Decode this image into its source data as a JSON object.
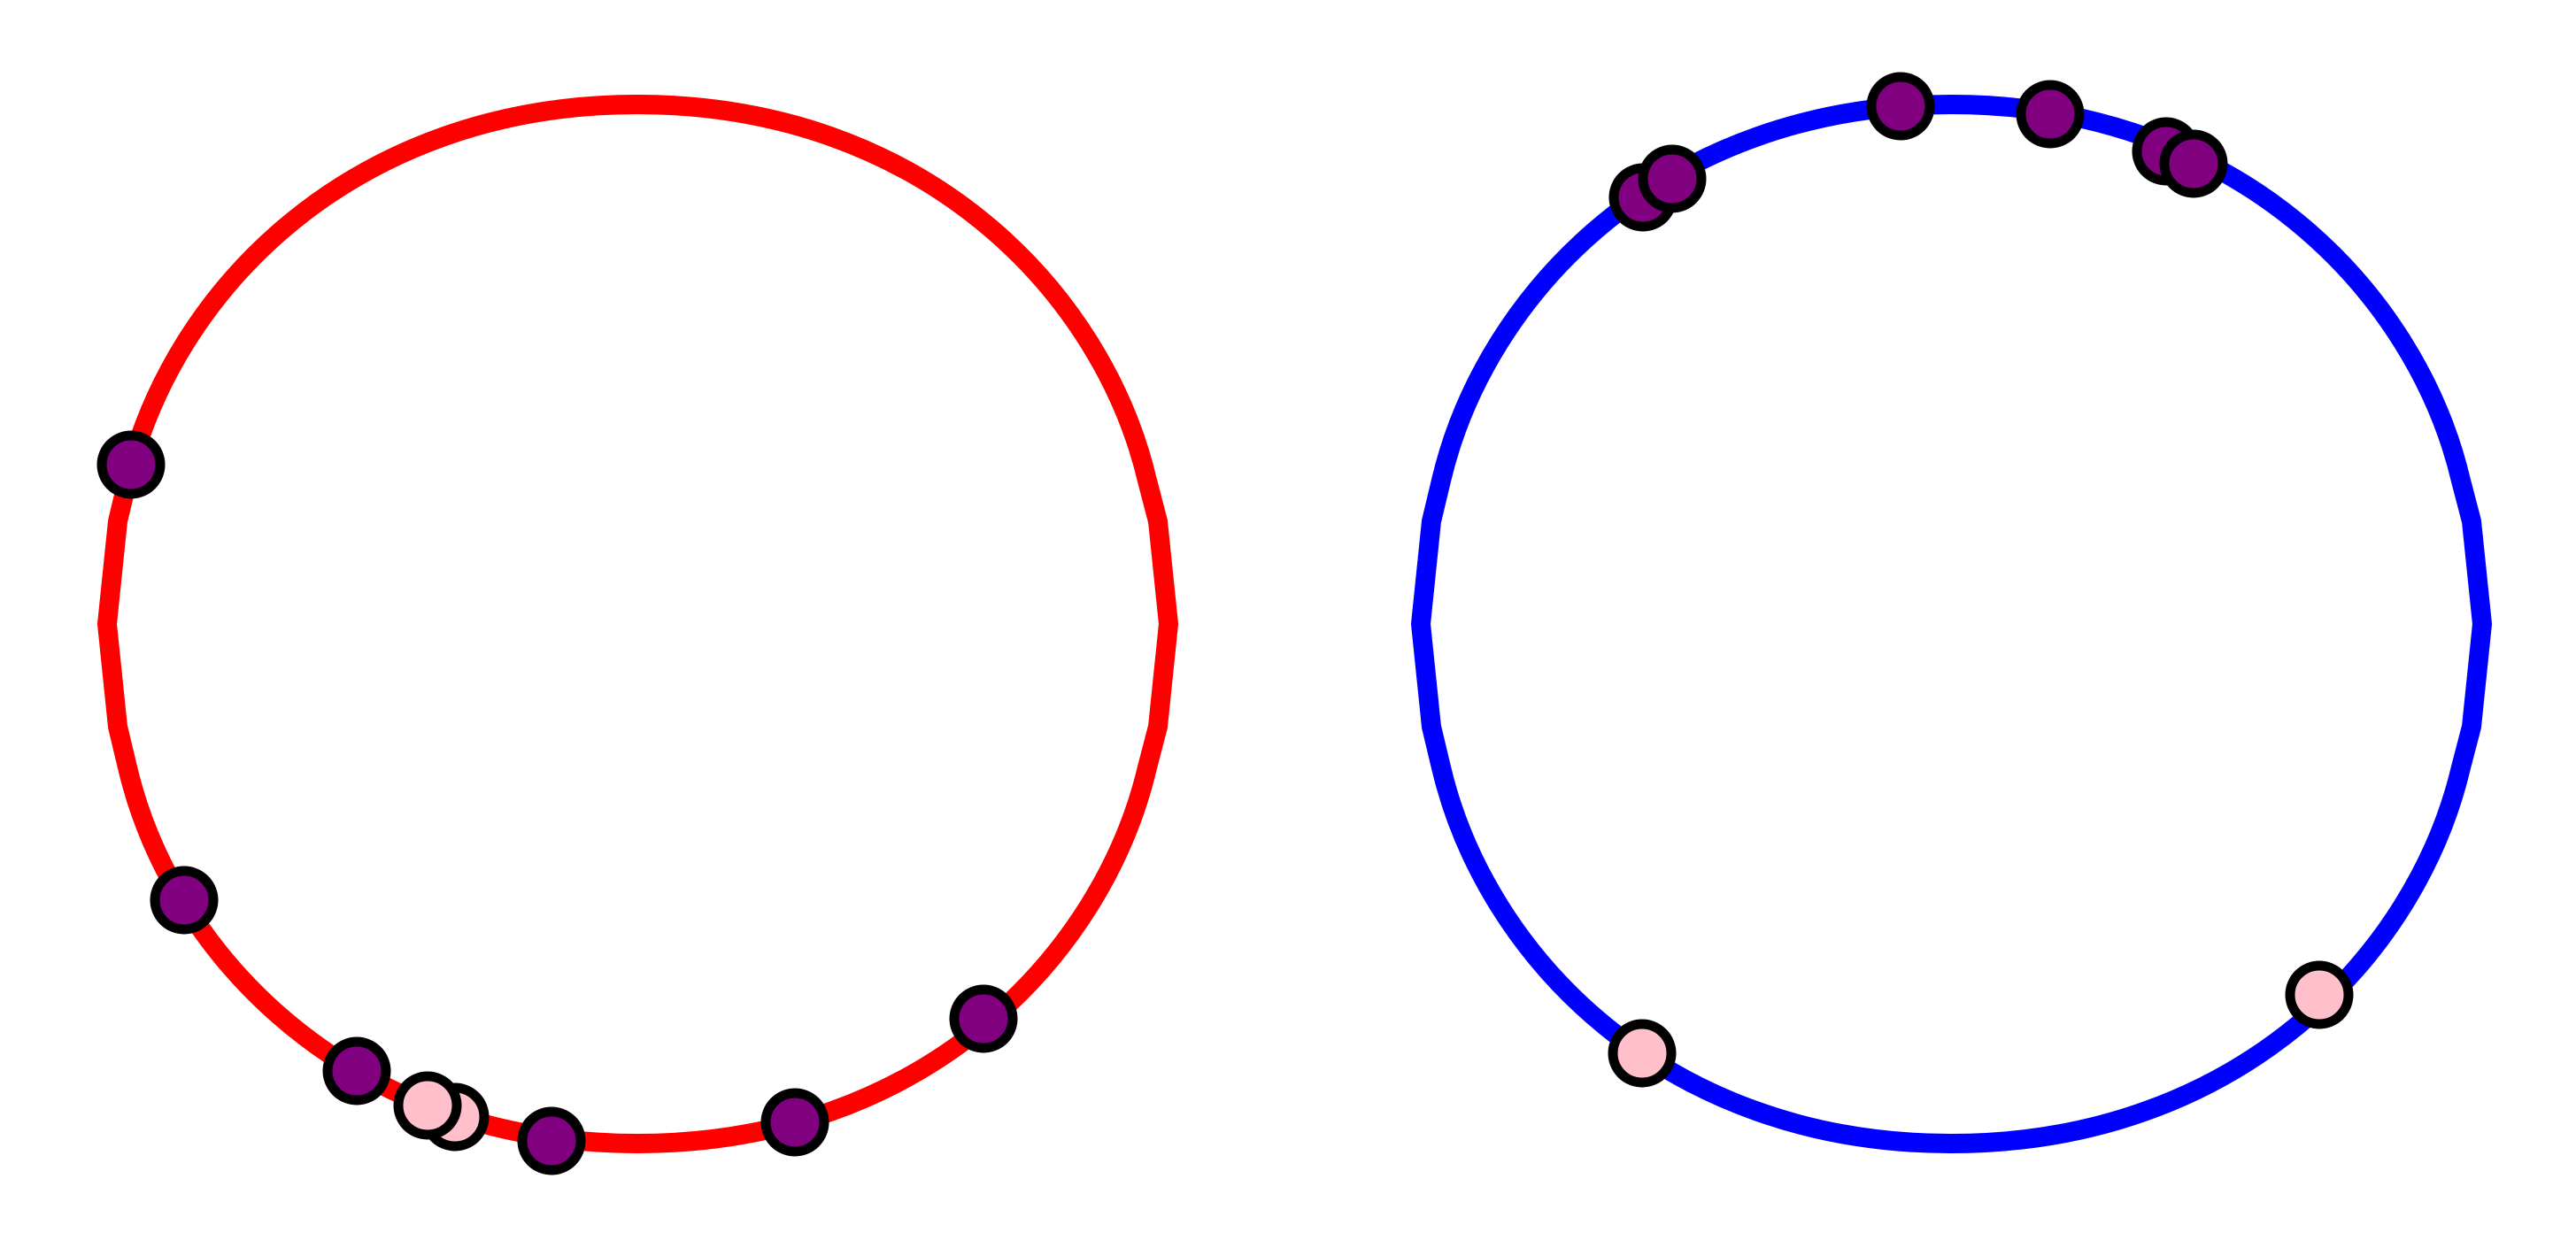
{
  "colors": {
    "left_ring": "#ff0000",
    "right_ring": "#0000ff",
    "point_purple": "#800080",
    "point_pink": "#ffc0cb",
    "point_outline": "#000000",
    "background": "#ffffff"
  },
  "rings": [
    {
      "id": "left",
      "color_key": "left_ring",
      "points": [
        {
          "fill": "point_purple"
        },
        {
          "fill": "point_purple"
        },
        {
          "fill": "point_purple"
        },
        {
          "fill": "point_pink"
        },
        {
          "fill": "point_pink"
        },
        {
          "fill": "point_purple"
        },
        {
          "fill": "point_purple"
        },
        {
          "fill": "point_purple"
        }
      ]
    },
    {
      "id": "right",
      "color_key": "right_ring",
      "points": [
        {
          "fill": "point_purple"
        },
        {
          "fill": "point_purple"
        },
        {
          "fill": "point_purple"
        },
        {
          "fill": "point_purple"
        },
        {
          "fill": "point_purple"
        },
        {
          "fill": "point_purple"
        },
        {
          "fill": "point_pink"
        },
        {
          "fill": "point_pink"
        }
      ]
    }
  ]
}
